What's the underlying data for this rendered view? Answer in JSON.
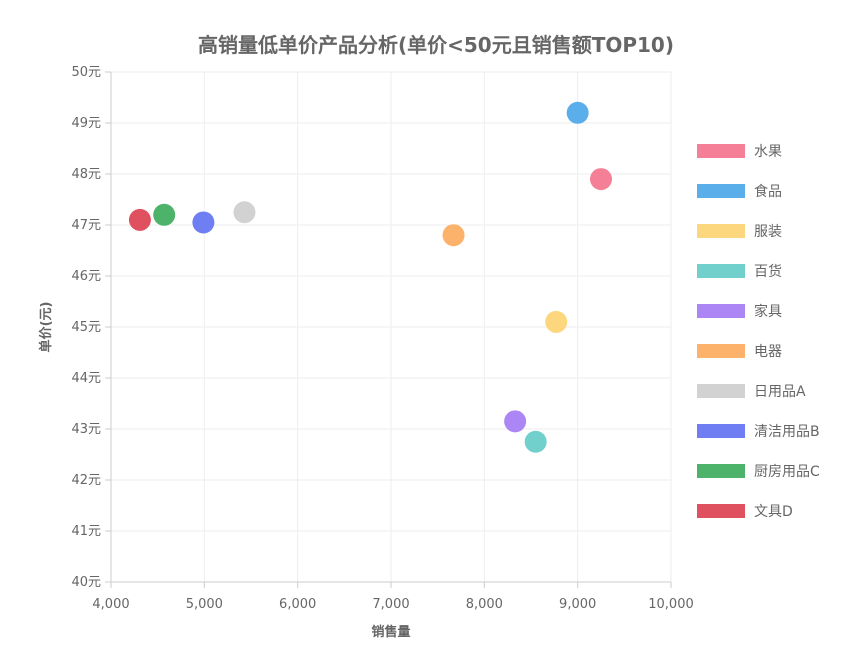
{
  "chart_data": {
    "type": "scatter",
    "title": "高销量低单价产品分析(单价<50元且销售额TOP10)",
    "xlabel": "销售量",
    "ylabel": "单价(元)",
    "xlim": [
      4000,
      10000
    ],
    "ylim": [
      40,
      50
    ],
    "x_ticks": [
      {
        "value": 4000,
        "label": "4,000"
      },
      {
        "value": 5000,
        "label": "5,000"
      },
      {
        "value": 6000,
        "label": "6,000"
      },
      {
        "value": 7000,
        "label": "7,000"
      },
      {
        "value": 8000,
        "label": "8,000"
      },
      {
        "value": 9000,
        "label": "9,000"
      },
      {
        "value": 10000,
        "label": "10,000"
      }
    ],
    "y_ticks": [
      {
        "value": 40,
        "label": "40元"
      },
      {
        "value": 41,
        "label": "41元"
      },
      {
        "value": 42,
        "label": "42元"
      },
      {
        "value": 43,
        "label": "43元"
      },
      {
        "value": 44,
        "label": "44元"
      },
      {
        "value": 45,
        "label": "45元"
      },
      {
        "value": 46,
        "label": "46元"
      },
      {
        "value": 47,
        "label": "47元"
      },
      {
        "value": 48,
        "label": "48元"
      },
      {
        "value": 49,
        "label": "49元"
      },
      {
        "value": 50,
        "label": "50元"
      }
    ],
    "grid": true,
    "legend_position": "right",
    "series": [
      {
        "name": "水果",
        "color": "#f67f98",
        "x": 9250,
        "y": 47.9
      },
      {
        "name": "食品",
        "color": "#5aaeea",
        "x": 9000,
        "y": 49.2
      },
      {
        "name": "服装",
        "color": "#fcd77e",
        "x": 8770,
        "y": 45.1
      },
      {
        "name": "百货",
        "color": "#71d0cc",
        "x": 8550,
        "y": 42.75
      },
      {
        "name": "家具",
        "color": "#ac86f5",
        "x": 8330,
        "y": 43.15
      },
      {
        "name": "电器",
        "color": "#fcb26b",
        "x": 7670,
        "y": 46.8
      },
      {
        "name": "日用品A",
        "color": "#d2d2d2",
        "x": 5430,
        "y": 47.25
      },
      {
        "name": "清洁用品B",
        "color": "#6f7ef2",
        "x": 4990,
        "y": 47.05
      },
      {
        "name": "厨房用品C",
        "color": "#4db36a",
        "x": 4570,
        "y": 47.2
      },
      {
        "name": "文具D",
        "color": "#e0515f",
        "x": 4310,
        "y": 47.1
      }
    ]
  }
}
